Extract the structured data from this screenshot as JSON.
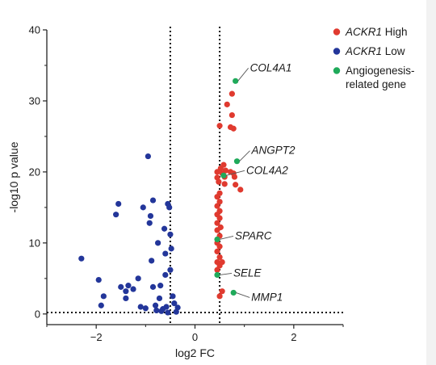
{
  "chart_data": {
    "type": "scatter",
    "xlabel": "log2 FC",
    "ylabel": "-log10 p value",
    "xlim": [
      -3,
      3
    ],
    "ylim": [
      -1.5,
      40
    ],
    "xticks": [
      -2,
      0,
      2
    ],
    "yticks": [
      0,
      10,
      20,
      30,
      40
    ],
    "thresholds": {
      "x": [
        -0.5,
        0.5
      ],
      "y": 0.2
    },
    "colors": {
      "high": "#e03a2f",
      "low": "#23369a",
      "angio": "#1faa5a",
      "threshold": "#111111",
      "axis": "#222222"
    },
    "legend": {
      "placement": "top-right",
      "entries": [
        {
          "key": "high",
          "label": "ACKR1",
          "suffix": " High",
          "italic": true
        },
        {
          "key": "low",
          "label": "ACKR1",
          "suffix": " Low",
          "italic": true
        },
        {
          "key": "angio",
          "label": "Angiogenesis-",
          "line2": "related gene",
          "italic": false
        }
      ]
    },
    "series": [
      {
        "key": "high",
        "points": [
          [
            0.75,
            31.0
          ],
          [
            0.65,
            29.5
          ],
          [
            0.5,
            26.5
          ],
          [
            0.72,
            26.3
          ],
          [
            0.78,
            26.1
          ],
          [
            0.75,
            28.0
          ],
          [
            0.58,
            21.0
          ],
          [
            0.62,
            20.2
          ],
          [
            0.52,
            20.5
          ],
          [
            0.45,
            20.0
          ],
          [
            0.55,
            19.8
          ],
          [
            0.6,
            19.3
          ],
          [
            0.45,
            19.2
          ],
          [
            0.48,
            18.6
          ],
          [
            0.6,
            18.3
          ],
          [
            0.72,
            20.0
          ],
          [
            0.78,
            19.8
          ],
          [
            0.8,
            19.3
          ],
          [
            0.82,
            18.2
          ],
          [
            0.92,
            17.5
          ],
          [
            0.5,
            17.0
          ],
          [
            0.45,
            16.5
          ],
          [
            0.5,
            15.8
          ],
          [
            0.45,
            15.2
          ],
          [
            0.5,
            14.5
          ],
          [
            0.45,
            14.0
          ],
          [
            0.5,
            13.5
          ],
          [
            0.45,
            12.8
          ],
          [
            0.52,
            12.2
          ],
          [
            0.45,
            11.8
          ],
          [
            0.5,
            11.0
          ],
          [
            0.45,
            10.0
          ],
          [
            0.5,
            9.5
          ],
          [
            0.45,
            8.8
          ],
          [
            0.5,
            8.0
          ],
          [
            0.45,
            7.3
          ],
          [
            0.5,
            6.8
          ],
          [
            0.55,
            7.3
          ],
          [
            0.45,
            6.2
          ],
          [
            0.55,
            3.2
          ],
          [
            0.5,
            2.5
          ]
        ]
      },
      {
        "key": "low",
        "points": [
          [
            -2.3,
            7.8
          ],
          [
            -1.95,
            4.8
          ],
          [
            -1.85,
            2.5
          ],
          [
            -1.9,
            1.2
          ],
          [
            -1.6,
            14.0
          ],
          [
            -1.55,
            15.5
          ],
          [
            -1.5,
            3.8
          ],
          [
            -1.4,
            3.2
          ],
          [
            -1.35,
            4.0
          ],
          [
            -1.4,
            2.2
          ],
          [
            -1.25,
            3.5
          ],
          [
            -1.15,
            5.0
          ],
          [
            -1.1,
            1.0
          ],
          [
            -1.05,
            15.0
          ],
          [
            -1.0,
            0.8
          ],
          [
            -0.95,
            22.2
          ],
          [
            -0.92,
            12.8
          ],
          [
            -0.9,
            13.8
          ],
          [
            -0.85,
            16.0
          ],
          [
            -0.88,
            7.5
          ],
          [
            -0.85,
            3.8
          ],
          [
            -0.8,
            1.2
          ],
          [
            -0.78,
            0.5
          ],
          [
            -0.75,
            10.0
          ],
          [
            -0.7,
            4.0
          ],
          [
            -0.72,
            2.2
          ],
          [
            -0.68,
            0.4
          ],
          [
            -0.62,
            12.0
          ],
          [
            -0.6,
            8.5
          ],
          [
            -0.6,
            5.5
          ],
          [
            -0.58,
            1.0
          ],
          [
            -0.55,
            15.5
          ],
          [
            -0.52,
            15.0
          ],
          [
            -0.5,
            11.2
          ],
          [
            -0.48,
            9.2
          ],
          [
            -0.5,
            6.2
          ],
          [
            -0.45,
            2.5
          ],
          [
            -0.42,
            1.5
          ],
          [
            -0.38,
            0.3
          ],
          [
            -0.35,
            0.9
          ],
          [
            -0.55,
            0.2
          ],
          [
            -0.65,
            0.7
          ]
        ]
      },
      {
        "key": "angio",
        "points": [
          [
            0.82,
            32.8
          ],
          [
            0.85,
            21.5
          ],
          [
            0.58,
            19.5
          ],
          [
            0.45,
            10.5
          ],
          [
            0.45,
            5.5
          ],
          [
            0.78,
            3.0
          ]
        ]
      }
    ],
    "annotations": [
      {
        "label": "COL4A1",
        "x": 0.82,
        "y": 32.8
      },
      {
        "label": "ANGPT2",
        "x": 0.85,
        "y": 21.5
      },
      {
        "label": "COL4A2",
        "x": 0.58,
        "y": 19.5
      },
      {
        "label": "SPARC",
        "x": 0.45,
        "y": 10.5
      },
      {
        "label": "SELE",
        "x": 0.45,
        "y": 5.5
      },
      {
        "label": "MMP1",
        "x": 0.78,
        "y": 3.0
      }
    ]
  }
}
